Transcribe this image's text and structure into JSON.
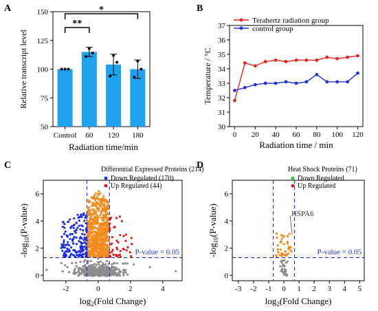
{
  "panels": {
    "A": "A",
    "B": "B",
    "C": "C",
    "D": "D"
  },
  "colors": {
    "bar": "#1fa2ee",
    "terahertz": "#e8231f",
    "control": "#2233dd",
    "down": "#1b2fe0",
    "up": "#e01818",
    "ns": "#8c8c8c",
    "sig": "#f28d1d",
    "threshold": "#1a2bd6",
    "down_legend_d": "#2ecc40"
  },
  "chart_data": [
    {
      "panel": "A",
      "type": "bar",
      "categories": [
        "Control",
        "60",
        "120",
        "180"
      ],
      "values": [
        100,
        115,
        104,
        100
      ],
      "error": [
        0,
        4,
        9,
        8
      ],
      "points": [
        [
          100,
          100,
          100
        ],
        [
          111,
          118,
          114
        ],
        [
          94,
          112,
          106
        ],
        [
          93,
          107,
          100
        ]
      ],
      "ylabel": "Relative transcript level",
      "xlabel": "Radiation time/min",
      "ylim": [
        50,
        150
      ],
      "yticks": [
        "50",
        "75",
        "100",
        "125",
        "150"
      ],
      "significance": [
        {
          "from": "Control",
          "to": "60",
          "label": "**"
        },
        {
          "from": "Control",
          "to": "180",
          "label": "*"
        }
      ]
    },
    {
      "panel": "B",
      "type": "line",
      "x": [
        0,
        10,
        20,
        30,
        40,
        50,
        60,
        70,
        80,
        90,
        100,
        110,
        120
      ],
      "series": [
        {
          "name": "Terahertz radiation group",
          "values": [
            31.8,
            34.4,
            34.2,
            34.5,
            34.6,
            34.5,
            34.6,
            34.6,
            34.6,
            34.8,
            34.7,
            34.8,
            34.9
          ]
        },
        {
          "name": "control group",
          "values": [
            32.5,
            32.7,
            32.9,
            33.0,
            33.0,
            33.1,
            33.0,
            33.1,
            33.6,
            33.1,
            33.1,
            33.1,
            33.7
          ]
        }
      ],
      "xlabel": "Radiation time / min",
      "ylabel": "Temperature / °C",
      "xlim": [
        -5,
        125
      ],
      "ylim": [
        30,
        37
      ],
      "xticks": [
        "0",
        "20",
        "40",
        "60",
        "80",
        "100",
        "120"
      ],
      "yticks": [
        "30",
        "31",
        "32",
        "33",
        "34",
        "35",
        "36",
        "37"
      ],
      "legend": "top-left"
    },
    {
      "panel": "C",
      "type": "scatter",
      "title": "Differential Expressed Proteins (214)",
      "legend_entries": [
        "Down Regulated (170)",
        "Up Regulated (44)"
      ],
      "xlabel_base": "log",
      "xlabel_sub": "2",
      "xlabel_rest": "(Fold Change)",
      "ylabel_base": "-log",
      "ylabel_sub": "10",
      "ylabel_rest": "(P-value)",
      "xlim": [
        -3.4,
        5.2
      ],
      "ylim": [
        -0.4,
        7
      ],
      "xticks": [
        "-2",
        "0",
        "2",
        "4"
      ],
      "yticks": [
        "0",
        "2",
        "4",
        "6"
      ],
      "thresholds": {
        "x": [
          -0.7,
          0.7
        ],
        "y": 1.3
      },
      "threshold_label": "P-value = 0.05",
      "counts": {
        "down": 170,
        "up": 44
      }
    },
    {
      "panel": "D",
      "type": "scatter",
      "title": "Heat Shock Proteins (71)",
      "legend_entries": [
        "Down Regulated",
        "Up Regulated"
      ],
      "xlabel_base": "log",
      "xlabel_sub": "2",
      "xlabel_rest": "(Fold Change)",
      "ylabel_base": "-log",
      "ylabel_sub": "10",
      "ylabel_rest": "(P-value)",
      "xlim": [
        -3.4,
        5.3
      ],
      "ylim": [
        -0.4,
        7
      ],
      "xticks": [
        "-3",
        "-2",
        "-1",
        "0",
        "1",
        "2",
        "3",
        "4",
        "5"
      ],
      "yticks": [
        "0",
        "2",
        "4",
        "6"
      ],
      "thresholds": {
        "x": [
          -0.7,
          0.7
        ],
        "y": 1.3
      },
      "threshold_label": "P-value = 0.05",
      "annotation": {
        "label": "HSPA6",
        "x": 0.55,
        "y": 3.0
      }
    }
  ]
}
